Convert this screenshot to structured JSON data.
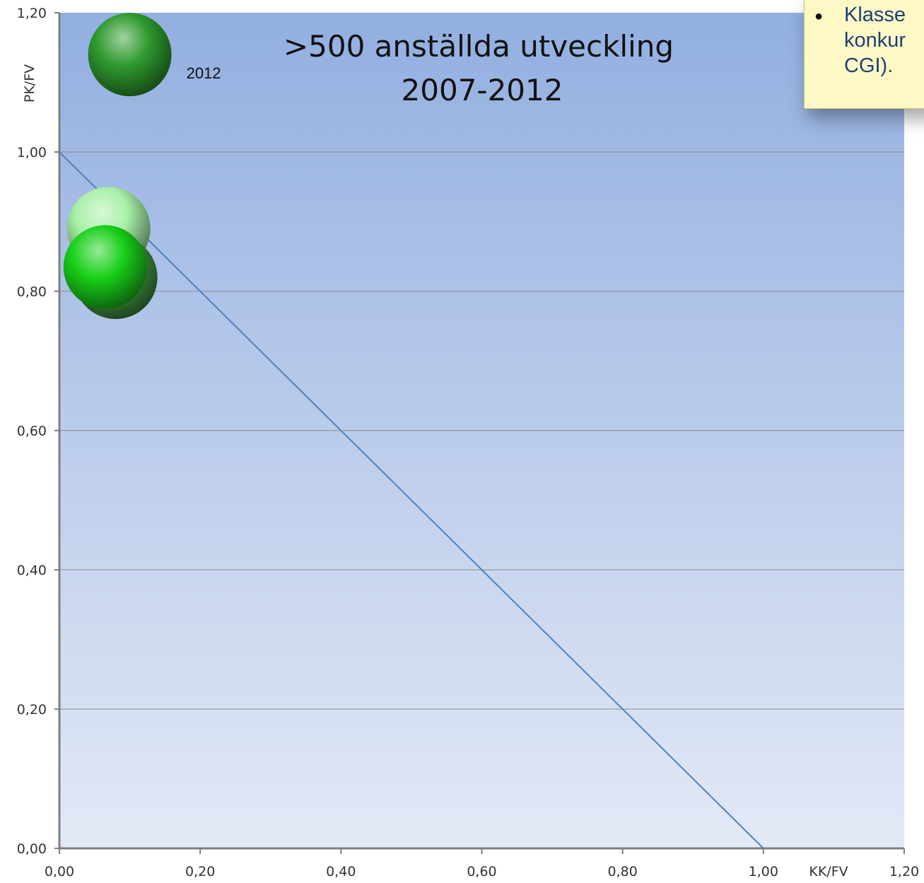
{
  "chart_data": {
    "type": "scatter",
    "title_lines": [
      ">500 anställda utveckling",
      "2007-2012"
    ],
    "xlabel": "KK/FV",
    "ylabel": "PK/FV",
    "xlim": [
      0,
      1.2
    ],
    "ylim": [
      0,
      1.2
    ],
    "xticks": [
      "0,00",
      "0,20",
      "0,40",
      "0,60",
      "0,80",
      "1,00",
      "1,20"
    ],
    "yticks": [
      "0,00",
      "0,20",
      "0,40",
      "0,60",
      "0,80",
      "1,00",
      "1,20"
    ],
    "grid": true,
    "reference_line": {
      "x": [
        0,
        1.0
      ],
      "y": [
        1.0,
        0
      ]
    },
    "points": [
      {
        "x": 0.07,
        "y": 0.89,
        "color": "#a8f0a8"
      },
      {
        "x": 0.08,
        "y": 0.82,
        "color": "#3e8f3e"
      },
      {
        "x": 0.065,
        "y": 0.835,
        "color": "#19d019"
      },
      {
        "x": 0.1,
        "y": 1.14,
        "color": "#2f9a2f",
        "label": "2012"
      }
    ]
  },
  "note": {
    "lines": [
      "Klasse",
      "konkur",
      "CGI)."
    ]
  },
  "colors": {
    "plot_top": "#92afe0",
    "plot_bottom": "#e3e9f6",
    "line": "#4f81bd",
    "grid": "#8a8a8a",
    "axis": "#7f7f7f"
  }
}
